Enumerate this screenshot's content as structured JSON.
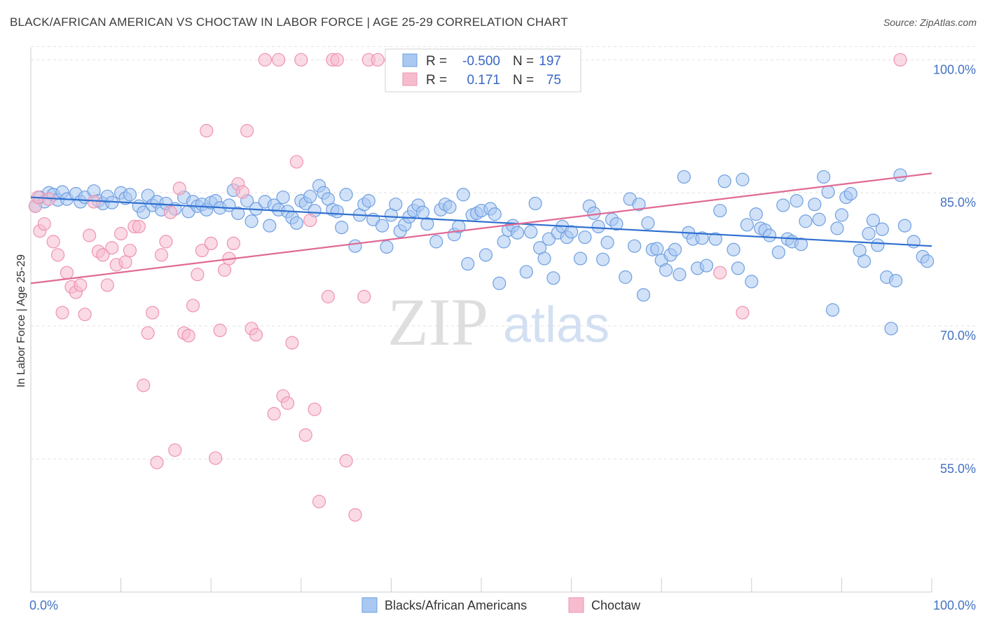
{
  "header": {
    "title": "BLACK/AFRICAN AMERICAN VS CHOCTAW IN LABOR FORCE | AGE 25-29 CORRELATION CHART",
    "source": "Source: ZipAtlas.com"
  },
  "watermark": {
    "part1": "ZIP",
    "part2": "atlas"
  },
  "legend": {
    "r_label": "R =",
    "n_label": "N =",
    "rows": [
      {
        "r": "-0.500",
        "n": "197"
      },
      {
        "r": "0.171",
        "n": "75"
      }
    ]
  },
  "bottom_legend": [
    "Blacks/African Americans",
    "Choctaw"
  ],
  "chart_data": {
    "type": "scatter",
    "title": "BLACK/AFRICAN AMERICAN VS CHOCTAW IN LABOR FORCE | AGE 25-29 CORRELATION CHART",
    "ylabel": "In Labor Force | Age 25-29",
    "xlabel": "",
    "xlim": [
      0,
      100
    ],
    "ylim": [
      40,
      102
    ],
    "x_tick_labels": [
      "0.0%",
      "100.0%"
    ],
    "y_ticks": [
      55,
      70,
      85,
      100
    ],
    "y_tick_labels": [
      "55.0%",
      "70.0%",
      "85.0%",
      "100.0%"
    ],
    "grid": true,
    "legend_position": "top-center",
    "colors": {
      "blue": "#a9c8f2",
      "blue_edge": "#6f9fe0",
      "blue_line": "#2f6fd0",
      "pink": "#f6bccd",
      "pink_edge": "#ef93b0",
      "pink_line": "#e06a94"
    },
    "series": [
      {
        "name": "Blacks/African Americans",
        "r": -0.5,
        "n": 197,
        "trend": {
          "x": [
            0,
            100
          ],
          "y": [
            84.5,
            79.0
          ]
        },
        "points": [
          [
            0.5,
            83.5
          ],
          [
            1,
            84.5
          ],
          [
            1.5,
            84
          ],
          [
            2,
            85
          ],
          [
            2.5,
            84.8
          ],
          [
            3,
            84.2
          ],
          [
            3.5,
            85.1
          ],
          [
            4,
            84.3
          ],
          [
            5,
            84.9
          ],
          [
            5.5,
            84
          ],
          [
            6,
            84.5
          ],
          [
            7,
            85.2
          ],
          [
            7.5,
            84.1
          ],
          [
            8,
            83.8
          ],
          [
            8.5,
            84.6
          ],
          [
            9,
            83.9
          ],
          [
            10,
            85
          ],
          [
            10.5,
            84.4
          ],
          [
            11,
            84.8
          ],
          [
            12,
            83.5
          ],
          [
            12.5,
            82.8
          ],
          [
            13,
            84.7
          ],
          [
            13.5,
            83.6
          ],
          [
            14,
            84
          ],
          [
            14.5,
            83.1
          ],
          [
            15,
            83.8
          ],
          [
            16,
            83.2
          ],
          [
            17,
            84.5
          ],
          [
            17.5,
            82.9
          ],
          [
            18,
            84
          ],
          [
            18.5,
            83.5
          ],
          [
            19,
            83.7
          ],
          [
            19.5,
            83.1
          ],
          [
            20,
            83.9
          ],
          [
            20.5,
            84.1
          ],
          [
            21,
            83.3
          ],
          [
            22,
            83.6
          ],
          [
            22.5,
            85.3
          ],
          [
            23,
            82.7
          ],
          [
            24,
            84.1
          ],
          [
            24.5,
            81.8
          ],
          [
            25,
            83.2
          ],
          [
            26,
            84
          ],
          [
            26.5,
            81.3
          ],
          [
            27,
            83.6
          ],
          [
            27.5,
            83.1
          ],
          [
            28,
            84.5
          ],
          [
            28.5,
            82.9
          ],
          [
            29,
            82.2
          ],
          [
            29.5,
            81.6
          ],
          [
            30,
            84.1
          ],
          [
            30.5,
            83.8
          ],
          [
            31,
            84.6
          ],
          [
            31.5,
            83
          ],
          [
            32,
            85.8
          ],
          [
            32.5,
            85
          ],
          [
            33,
            84.3
          ],
          [
            33.5,
            83.1
          ],
          [
            34,
            82.9
          ],
          [
            34.5,
            81.1
          ],
          [
            35,
            84.8
          ],
          [
            36,
            79
          ],
          [
            36.5,
            82.5
          ],
          [
            37,
            83.7
          ],
          [
            37.5,
            84.1
          ],
          [
            38,
            82
          ],
          [
            39,
            81.3
          ],
          [
            39.5,
            78.9
          ],
          [
            40,
            82.5
          ],
          [
            40.5,
            83.7
          ],
          [
            41,
            80.7
          ],
          [
            41.5,
            81.4
          ],
          [
            42,
            82.3
          ],
          [
            42.5,
            83
          ],
          [
            43,
            83.6
          ],
          [
            43.5,
            82.8
          ],
          [
            44,
            81.5
          ],
          [
            45,
            79.5
          ],
          [
            45.5,
            83.1
          ],
          [
            46,
            83.7
          ],
          [
            46.5,
            83.4
          ],
          [
            47,
            80.3
          ],
          [
            47.5,
            81.2
          ],
          [
            48,
            84.8
          ],
          [
            48.5,
            77
          ],
          [
            49,
            82.5
          ],
          [
            49.5,
            82.7
          ],
          [
            50,
            83
          ],
          [
            50.5,
            78
          ],
          [
            51,
            83.2
          ],
          [
            51.5,
            82.6
          ],
          [
            52,
            74.8
          ],
          [
            52.5,
            79.5
          ],
          [
            53,
            80.8
          ],
          [
            53.5,
            81.3
          ],
          [
            54,
            80.5
          ],
          [
            55,
            76.1
          ],
          [
            55.5,
            80.6
          ],
          [
            56,
            83.8
          ],
          [
            56.5,
            78.8
          ],
          [
            57,
            77.6
          ],
          [
            57.5,
            79.8
          ],
          [
            58,
            75.4
          ],
          [
            58.5,
            80.5
          ],
          [
            59,
            81.2
          ],
          [
            59.5,
            80
          ],
          [
            60,
            80.6
          ],
          [
            61,
            77.6
          ],
          [
            61.5,
            80
          ],
          [
            62,
            83.5
          ],
          [
            62.5,
            82.7
          ],
          [
            63,
            81.2
          ],
          [
            63.5,
            77.5
          ],
          [
            64,
            79.4
          ],
          [
            64.5,
            82
          ],
          [
            65,
            81.5
          ],
          [
            66,
            75.5
          ],
          [
            66.5,
            84.3
          ],
          [
            67,
            79
          ],
          [
            67.5,
            83.7
          ],
          [
            68,
            73.5
          ],
          [
            68.5,
            81.6
          ],
          [
            69,
            78.6
          ],
          [
            69.5,
            78.7
          ],
          [
            70,
            77.4
          ],
          [
            70.5,
            76.3
          ],
          [
            71,
            78
          ],
          [
            71.5,
            78.6
          ],
          [
            72,
            75.8
          ],
          [
            72.5,
            86.8
          ],
          [
            73,
            80.5
          ],
          [
            73.5,
            79.8
          ],
          [
            74,
            76.5
          ],
          [
            74.5,
            79.9
          ],
          [
            75,
            76.8
          ],
          [
            76,
            79.8
          ],
          [
            76.5,
            83
          ],
          [
            77,
            86.3
          ],
          [
            78,
            78.6
          ],
          [
            78.5,
            76.5
          ],
          [
            79,
            86.5
          ],
          [
            79.5,
            81.4
          ],
          [
            80,
            75
          ],
          [
            80.5,
            82.6
          ],
          [
            81,
            81
          ],
          [
            81.5,
            80.8
          ],
          [
            82,
            80.2
          ],
          [
            83,
            78.3
          ],
          [
            83.5,
            83.6
          ],
          [
            84,
            79.8
          ],
          [
            84.5,
            79.5
          ],
          [
            85,
            84.1
          ],
          [
            85.5,
            79.2
          ],
          [
            86,
            81.8
          ],
          [
            87,
            83.7
          ],
          [
            87.5,
            82
          ],
          [
            88,
            86.8
          ],
          [
            88.5,
            85.1
          ],
          [
            89,
            71.8
          ],
          [
            89.5,
            81
          ],
          [
            90,
            82.5
          ],
          [
            90.5,
            84.5
          ],
          [
            91,
            84.9
          ],
          [
            92,
            78.5
          ],
          [
            92.5,
            77.3
          ],
          [
            93,
            80.4
          ],
          [
            93.5,
            81.9
          ],
          [
            94,
            79.1
          ],
          [
            94.5,
            80.9
          ],
          [
            95,
            75.5
          ],
          [
            95.5,
            69.7
          ],
          [
            96,
            75.1
          ],
          [
            96.5,
            87
          ],
          [
            97,
            81.3
          ],
          [
            98,
            79.5
          ],
          [
            99,
            77.8
          ],
          [
            99.5,
            77.3
          ]
        ]
      },
      {
        "name": "Choctaw",
        "r": 0.171,
        "n": 75,
        "trend": {
          "x": [
            0,
            100
          ],
          "y": [
            74.8,
            87.2
          ]
        },
        "points": [
          [
            0.5,
            83.5
          ],
          [
            0.8,
            84.5
          ],
          [
            1,
            80.7
          ],
          [
            1.5,
            81.5
          ],
          [
            2,
            84.3
          ],
          [
            2.5,
            79.5
          ],
          [
            3,
            78
          ],
          [
            3.5,
            71.5
          ],
          [
            4,
            76
          ],
          [
            4.5,
            74.4
          ],
          [
            5,
            73.8
          ],
          [
            5.5,
            74.6
          ],
          [
            6,
            71.3
          ],
          [
            6.5,
            80.2
          ],
          [
            7,
            84
          ],
          [
            7.5,
            78.4
          ],
          [
            8,
            78
          ],
          [
            8.5,
            74.6
          ],
          [
            9,
            78.8
          ],
          [
            9.5,
            76.9
          ],
          [
            10,
            80.4
          ],
          [
            10.5,
            77.2
          ],
          [
            11,
            78.5
          ],
          [
            11.5,
            81.2
          ],
          [
            12,
            81.2
          ],
          [
            12.5,
            63.3
          ],
          [
            13,
            69.2
          ],
          [
            13.5,
            71.5
          ],
          [
            14,
            54.6
          ],
          [
            14.5,
            78
          ],
          [
            15,
            79.5
          ],
          [
            15.5,
            82.8
          ],
          [
            16,
            56
          ],
          [
            16.5,
            85.5
          ],
          [
            17,
            69.2
          ],
          [
            17.5,
            68.9
          ],
          [
            18,
            72.3
          ],
          [
            18.5,
            75.8
          ],
          [
            19,
            78.5
          ],
          [
            19.5,
            92
          ],
          [
            20,
            79.3
          ],
          [
            20.5,
            55.1
          ],
          [
            21,
            69.5
          ],
          [
            21.5,
            76.3
          ],
          [
            22,
            77.6
          ],
          [
            22.5,
            79.3
          ],
          [
            23,
            86
          ],
          [
            23.5,
            85.1
          ],
          [
            24,
            92
          ],
          [
            24.5,
            69.7
          ],
          [
            25,
            69
          ],
          [
            26,
            100
          ],
          [
            27,
            60.1
          ],
          [
            27.5,
            100
          ],
          [
            28,
            62.1
          ],
          [
            28.5,
            61.3
          ],
          [
            29,
            68.1
          ],
          [
            29.5,
            88.5
          ],
          [
            30,
            100
          ],
          [
            30.5,
            57.7
          ],
          [
            31,
            81.9
          ],
          [
            31.5,
            60.6
          ],
          [
            32,
            50.2
          ],
          [
            33,
            73.3
          ],
          [
            33.5,
            100
          ],
          [
            34,
            100
          ],
          [
            35,
            54.8
          ],
          [
            36,
            48.7
          ],
          [
            37,
            73.3
          ],
          [
            37.5,
            100
          ],
          [
            38.5,
            100
          ],
          [
            40,
            100
          ],
          [
            76.5,
            76
          ],
          [
            79,
            71.5
          ],
          [
            96.5,
            100
          ]
        ]
      }
    ]
  }
}
